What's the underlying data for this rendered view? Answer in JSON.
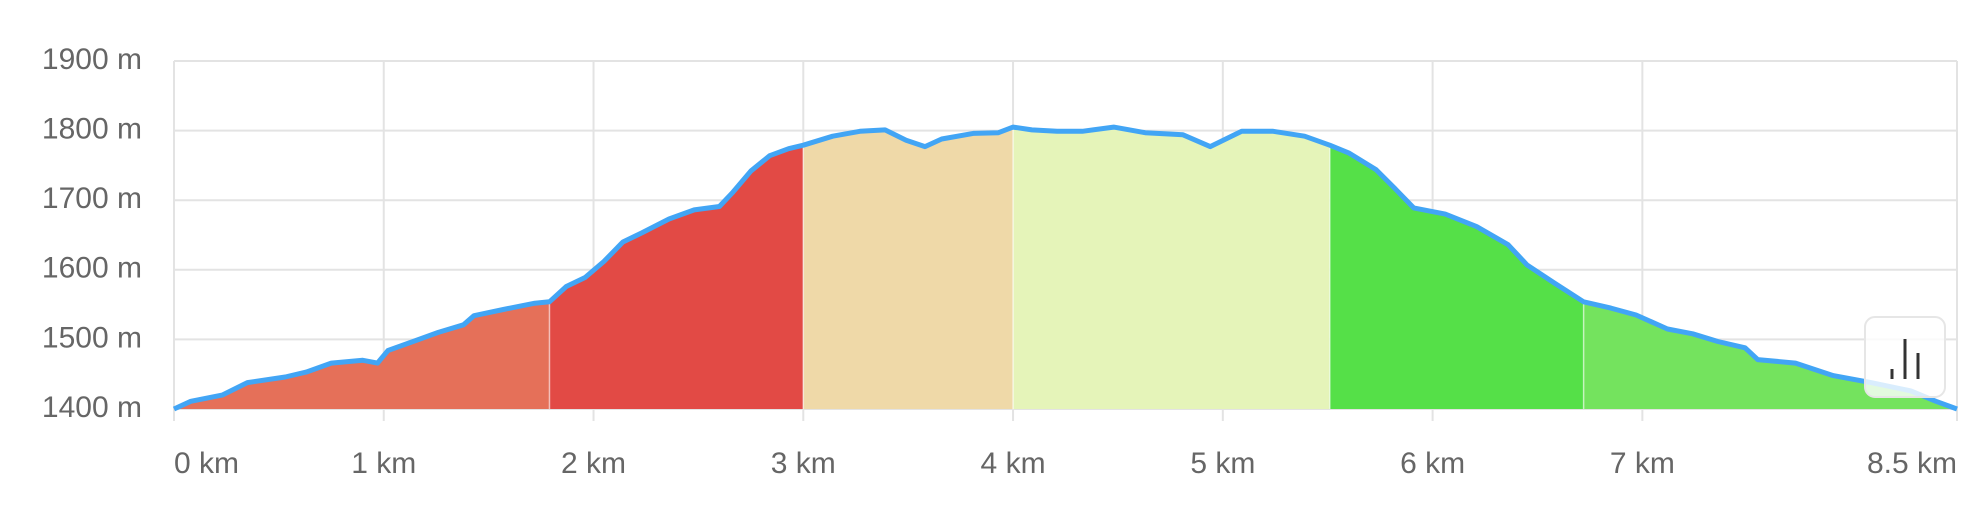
{
  "chart_data": {
    "type": "area",
    "x": [
      0,
      0.08,
      0.23,
      0.35,
      0.53,
      0.63,
      0.75,
      0.9,
      0.97,
      1.02,
      1.14,
      1.26,
      1.38,
      1.43,
      1.57,
      1.72,
      1.79,
      1.87,
      1.96,
      2.05,
      2.14,
      2.23,
      2.36,
      2.48,
      2.6,
      2.66,
      2.75,
      2.84,
      2.93,
      3.0,
      3.14,
      3.27,
      3.39,
      3.49,
      3.58,
      3.66,
      3.81,
      3.93,
      4.0,
      4.09,
      4.21,
      4.33,
      4.48,
      4.63,
      4.81,
      4.94,
      5.09,
      5.24,
      5.39,
      5.51,
      5.6,
      5.73,
      5.82,
      5.91,
      6.06,
      6.21,
      6.36,
      6.45,
      6.58,
      6.72,
      6.85,
      6.97,
      7.12,
      7.24,
      7.36,
      7.49,
      7.55,
      7.73,
      7.91,
      8.09,
      8.28,
      8.4,
      8.5
    ],
    "values": [
      1400,
      1411,
      1420,
      1438,
      1446,
      1453,
      1466,
      1470,
      1466,
      1484,
      1497,
      1510,
      1521,
      1534,
      1543,
      1552,
      1554,
      1576,
      1589,
      1612,
      1640,
      1653,
      1673,
      1686,
      1691,
      1710,
      1742,
      1764,
      1774,
      1779,
      1792,
      1799,
      1801,
      1786,
      1777,
      1788,
      1796,
      1797,
      1805,
      1801,
      1799,
      1799,
      1805,
      1797,
      1794,
      1777,
      1799,
      1799,
      1792,
      1779,
      1768,
      1744,
      1717,
      1689,
      1680,
      1662,
      1636,
      1607,
      1581,
      1554,
      1545,
      1535,
      1515,
      1508,
      1497,
      1488,
      1471,
      1466,
      1448,
      1438,
      1426,
      1411,
      1400
    ],
    "line_color": "#42a5f5",
    "segments": [
      {
        "from": 0,
        "to": 1.79,
        "color": "#e57059"
      },
      {
        "from": 1.79,
        "to": 3.0,
        "color": "#e24a45"
      },
      {
        "from": 3.0,
        "to": 4.0,
        "color": "#efd9a8"
      },
      {
        "from": 4.0,
        "to": 5.51,
        "color": "#e5f4b9"
      },
      {
        "from": 5.51,
        "to": 6.72,
        "color": "#55e048"
      },
      {
        "from": 6.72,
        "to": 8.5,
        "color": "#74e35e"
      }
    ],
    "xlim": [
      0,
      8.5
    ],
    "xticks": [
      {
        "value": 0,
        "label": "0 km"
      },
      {
        "value": 1,
        "label": "1 km"
      },
      {
        "value": 2,
        "label": "2 km"
      },
      {
        "value": 3,
        "label": "3 km"
      },
      {
        "value": 4,
        "label": "4 km"
      },
      {
        "value": 5,
        "label": "5 km"
      },
      {
        "value": 6,
        "label": "6 km"
      },
      {
        "value": 7,
        "label": "7 km"
      },
      {
        "value": 8.5,
        "label": "8.5 km"
      }
    ],
    "ylim": [
      1400,
      1900
    ],
    "yticks": [
      {
        "value": 1400,
        "label": "1400 m"
      },
      {
        "value": 1500,
        "label": "1500 m"
      },
      {
        "value": 1600,
        "label": "1600 m"
      },
      {
        "value": 1700,
        "label": "1700 m"
      },
      {
        "value": 1800,
        "label": "1800 m"
      },
      {
        "value": 1900,
        "label": "1900 m"
      }
    ],
    "grid": true
  }
}
